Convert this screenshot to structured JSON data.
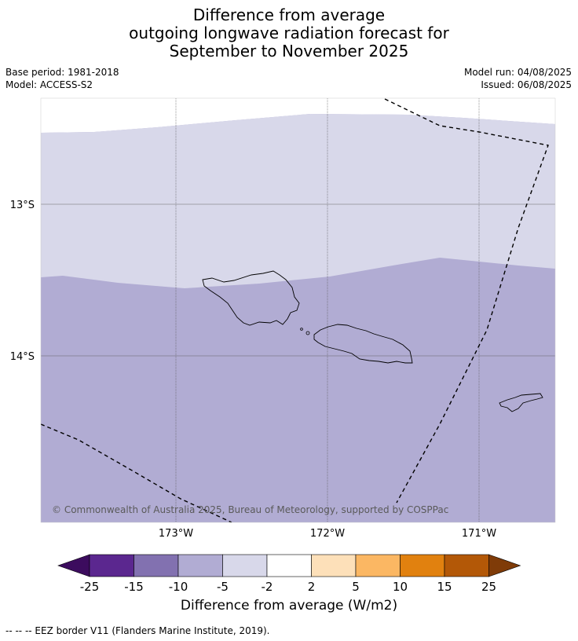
{
  "title": {
    "line1": "Difference from average",
    "line2": "outgoing longwave radiation forecast for",
    "line3": "September to November 2025"
  },
  "meta": {
    "base_period": "Base period: 1981-2018",
    "model": "Model: ACCESS-S2",
    "model_run": "Model run: 04/08/2025",
    "issued": "Issued: 06/08/2025"
  },
  "map": {
    "lat_labels": [
      "13°S",
      "14°S"
    ],
    "lon_labels": [
      "173°W",
      "172°W",
      "171°W"
    ],
    "copyright": "© Commonwealth of Australia 2025, Bureau of Meteorology, supported by COSPPac",
    "region_colors": {
      "band_minus5_to_minus2": "#d8d8ea",
      "band_minus10_to_minus5": "#b1acd3"
    }
  },
  "colorbar": {
    "ticks": [
      "-25",
      "-15",
      "-10",
      "-5",
      "-2",
      "2",
      "5",
      "10",
      "15",
      "25"
    ],
    "colors": [
      "#5b278f",
      "#8271b0",
      "#b1acd3",
      "#d8d8ea",
      "#ffffff",
      "#fde0b9",
      "#fbb763",
      "#e1810f",
      "#b35807"
    ],
    "under_color": "#3c0c5e",
    "over_color": "#7f3b08",
    "label": "Difference from average (W/m2)"
  },
  "footnote": "--  --  -- EEZ border V11 (Flanders Marine Institute, 2019)."
}
